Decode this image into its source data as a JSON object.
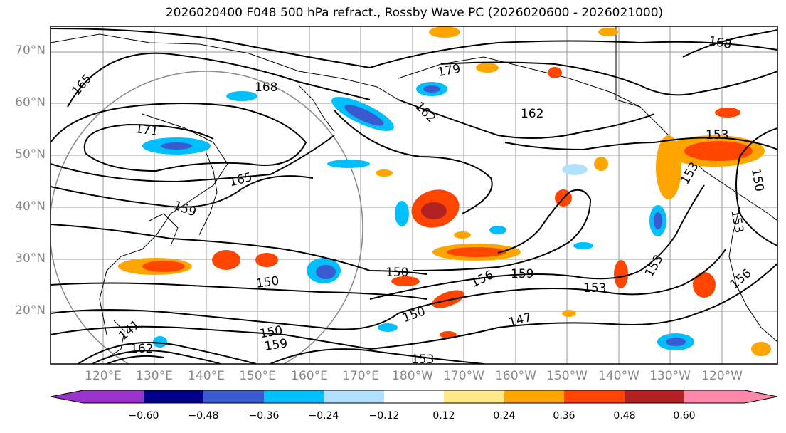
{
  "title": "2026020400 F048 500 hPa refract., Rossby Wave PC (2026020600 - 2026021000)",
  "map": {
    "lat_labels": [
      "70°N",
      "60°N",
      "50°N",
      "40°N",
      "30°N",
      "20°N"
    ],
    "lon_labels": [
      "120°E",
      "130°E",
      "140°E",
      "150°E",
      "160°E",
      "170°E",
      "180°W",
      "170°W",
      "160°W",
      "150°W",
      "140°W",
      "130°W",
      "120°W"
    ],
    "contour_labels": [
      "165",
      "168",
      "171",
      "165",
      "159",
      "150",
      "162",
      "162",
      "179",
      "168",
      "153",
      "153",
      "150",
      "153",
      "156",
      "159",
      "153",
      "147",
      "153",
      "156",
      "150",
      "159",
      "150",
      "141",
      "162",
      "153"
    ]
  },
  "colorbar": {
    "ticks": [
      "−0.60",
      "−0.48",
      "−0.36",
      "−0.24",
      "−0.12",
      "0.12",
      "0.24",
      "0.36",
      "0.48",
      "0.60"
    ],
    "colors": [
      "#9933cc",
      "#00008b",
      "#3a5bd0",
      "#00bfff",
      "#b0e0ff",
      "#ffffff",
      "#ffe98a",
      "#ffa500",
      "#ff4500",
      "#b22222",
      "#ff88aa"
    ]
  }
}
